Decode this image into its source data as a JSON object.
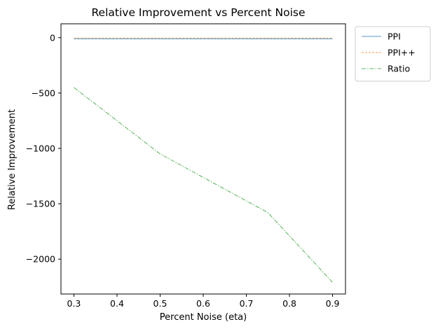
{
  "chart_data": {
    "type": "line",
    "title": "Relative Improvement vs Percent Noise",
    "xlabel": "Percent Noise (eta)",
    "ylabel": "Relative Improvement",
    "xlim": [
      0.27,
      0.93
    ],
    "ylim": [
      -2315,
      125
    ],
    "xticks": [
      0.3,
      0.4,
      0.5,
      0.6,
      0.7,
      0.8,
      0.9
    ],
    "xtick_labels": [
      "0.3",
      "0.4",
      "0.5",
      "0.6",
      "0.7",
      "0.8",
      "0.9"
    ],
    "yticks": [
      0,
      -500,
      -1000,
      -1500,
      -2000
    ],
    "ytick_labels": [
      "0",
      "−500",
      "−1000",
      "−1500",
      "−2000"
    ],
    "grid": false,
    "legend_position": "outside-top-right",
    "series": [
      {
        "name": "PPI",
        "color": "#1f77b4",
        "dash": "solid",
        "x": [
          0.3,
          0.5,
          0.75,
          0.9
        ],
        "y": [
          -10,
          -10,
          -10,
          -10
        ]
      },
      {
        "name": "PPI++",
        "color": "#ff7f0e",
        "dash": "dashed",
        "x": [
          0.3,
          0.5,
          0.75,
          0.9
        ],
        "y": [
          -3,
          -3,
          -3,
          -3
        ]
      },
      {
        "name": "Ratio",
        "color": "#2ca02c",
        "dash": "dashdot",
        "x": [
          0.3,
          0.5,
          0.75,
          0.9
        ],
        "y": [
          -450,
          -1050,
          -1580,
          -2210
        ]
      }
    ]
  }
}
